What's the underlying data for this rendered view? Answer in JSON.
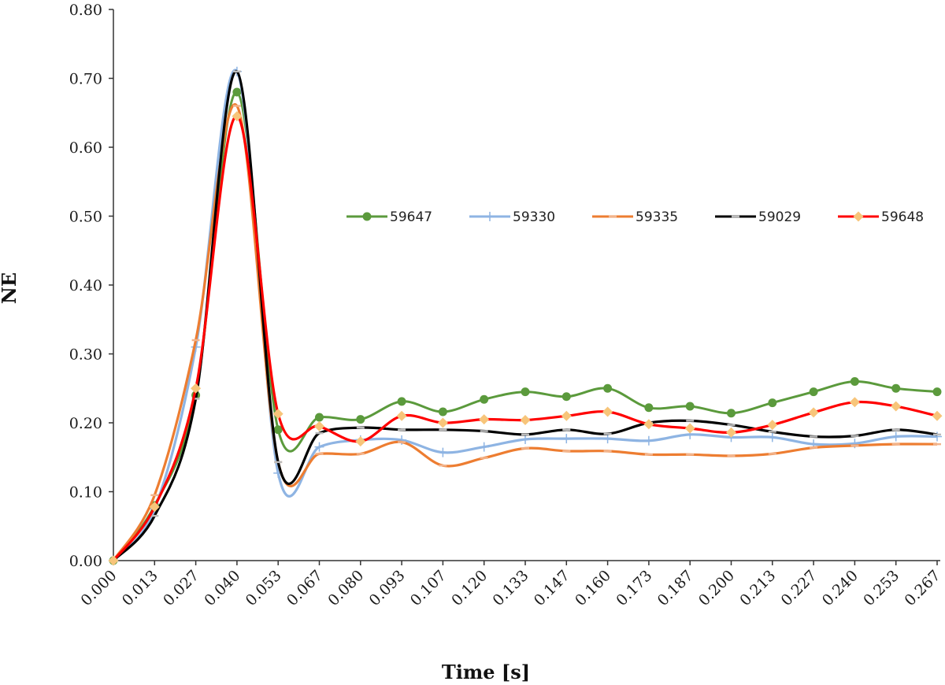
{
  "chart_data": {
    "type": "line",
    "title": "",
    "xlabel": "Time [s]",
    "ylabel": "NE",
    "ylim": [
      0,
      0.8
    ],
    "yticks": [
      "0.00",
      "0.10",
      "0.20",
      "0.30",
      "0.40",
      "0.50",
      "0.60",
      "0.70",
      "0.80"
    ],
    "categories": [
      "0.000",
      "0.013",
      "0.027",
      "0.040",
      "0.053",
      "0.067",
      "0.080",
      "0.093",
      "0.107",
      "0.120",
      "0.133",
      "0.147",
      "0.160",
      "0.173",
      "0.187",
      "0.200",
      "0.213",
      "0.227",
      "0.240",
      "0.253",
      "0.267"
    ],
    "grid": false,
    "legend_position": "center-right",
    "series": [
      {
        "name": "59647",
        "color": "#5b9a3c",
        "marker": "circle",
        "values": [
          0,
          0.08,
          0.24,
          0.68,
          0.19,
          0.208,
          0.205,
          0.231,
          0.216,
          0.234,
          0.245,
          0.238,
          0.25,
          0.222,
          0.224,
          0.214,
          0.229,
          0.245,
          0.26,
          0.25,
          0.245
        ]
      },
      {
        "name": "59330",
        "color": "#8eb4e3",
        "marker": "plus",
        "values": [
          0,
          0.075,
          0.31,
          0.71,
          0.127,
          0.165,
          0.175,
          0.175,
          0.157,
          0.165,
          0.176,
          0.177,
          0.177,
          0.174,
          0.183,
          0.179,
          0.179,
          0.169,
          0.17,
          0.18,
          0.18
        ]
      },
      {
        "name": "59335",
        "color": "#ed7d31",
        "marker": "dash",
        "values": [
          0,
          0.095,
          0.32,
          0.66,
          0.143,
          0.155,
          0.155,
          0.172,
          0.138,
          0.149,
          0.163,
          0.159,
          0.159,
          0.154,
          0.154,
          0.152,
          0.155,
          0.164,
          0.167,
          0.169,
          0.169
        ]
      },
      {
        "name": "59029",
        "color": "#000000",
        "marker": "dash",
        "values": [
          0,
          0.065,
          0.235,
          0.71,
          0.143,
          0.185,
          0.193,
          0.19,
          0.19,
          0.188,
          0.183,
          0.19,
          0.184,
          0.2,
          0.203,
          0.197,
          0.187,
          0.18,
          0.181,
          0.19,
          0.183
        ]
      },
      {
        "name": "59648",
        "color": "#ff0000",
        "marker": "diamond",
        "values": [
          0,
          0.078,
          0.25,
          0.645,
          0.213,
          0.195,
          0.173,
          0.21,
          0.2,
          0.205,
          0.204,
          0.21,
          0.216,
          0.198,
          0.192,
          0.186,
          0.197,
          0.215,
          0.23,
          0.224,
          0.21
        ]
      }
    ]
  }
}
